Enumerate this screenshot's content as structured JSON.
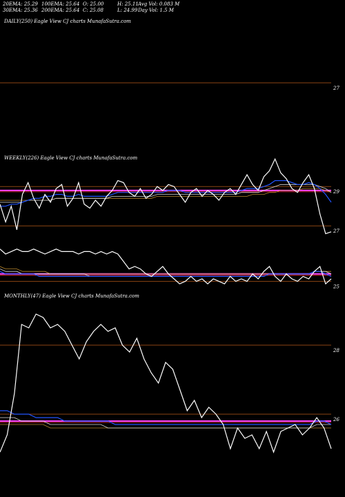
{
  "stats": {
    "ema20": "20EMA: 25.29",
    "ema100": "100EMA: 25.64",
    "open": "O: 25.00",
    "high": "H: 25.11",
    "avg_vol": "Avg Vol: 0.083 M",
    "ema30": "30EMA: 25.36",
    "ema200": "200EMA: 25.64",
    "close": "C: 25.08",
    "low": "L: 24.99",
    "day_vol": "Day Vol: 1.5  M"
  },
  "panels": {
    "daily": {
      "label": "DAILY(250) Eagle  View  CJ charts MunafaSutra.com"
    },
    "weekly": {
      "label": "WEEKLY(226) Eagle  View  CJ charts MunafaSutra.com"
    },
    "monthly": {
      "label": "MONTHLY(47) Eagle  View  CJ charts MunafaSutra.com"
    }
  },
  "colors": {
    "price": "#ffffff",
    "ema_fast": "#2255ff",
    "ema_mid": "#dddddd",
    "ema_slow": "#b8862b",
    "level_line": "#8b4513",
    "pink_level": "#ff44ff",
    "red_ema": "#ff3333"
  },
  "chart_data": [
    {
      "type": "line",
      "panel": "daily",
      "levels": [
        {
          "value": 27,
          "label": "27"
        }
      ],
      "series": []
    },
    {
      "type": "line",
      "panel": "weekly-upper",
      "ylim": [
        26.2,
        30.2
      ],
      "levels": [
        {
          "value": 29,
          "label": "29"
        },
        {
          "value": 27,
          "label": "27"
        }
      ],
      "pink_level": 28.8,
      "series": [
        {
          "role": "price",
          "values": [
            28.1,
            27.2,
            28.0,
            26.8,
            28.6,
            29.2,
            28.4,
            27.9,
            28.6,
            28.2,
            28.9,
            29.1,
            28.0,
            28.4,
            29.2,
            28.1,
            27.9,
            28.3,
            28.0,
            28.5,
            28.8,
            29.3,
            29.2,
            28.7,
            28.5,
            28.9,
            28.4,
            28.6,
            29.0,
            28.8,
            29.1,
            29.0,
            28.6,
            28.2,
            28.7,
            28.9,
            28.5,
            28.8,
            28.6,
            28.3,
            28.7,
            28.9,
            28.6,
            29.1,
            29.6,
            29.1,
            28.8,
            29.5,
            29.8,
            30.4,
            29.7,
            29.4,
            28.9,
            28.7,
            29.2,
            29.6,
            28.9,
            27.6,
            26.6,
            26.7
          ]
        },
        {
          "role": "ema_fast",
          "values": [
            28.0,
            28.0,
            28.1,
            28.1,
            28.2,
            28.3,
            28.4,
            28.4,
            28.5,
            28.5,
            28.6,
            28.6,
            28.5,
            28.5,
            28.6,
            28.5,
            28.5,
            28.5,
            28.5,
            28.5,
            28.6,
            28.7,
            28.7,
            28.7,
            28.7,
            28.7,
            28.7,
            28.7,
            28.7,
            28.7,
            28.8,
            28.8,
            28.8,
            28.7,
            28.7,
            28.7,
            28.7,
            28.7,
            28.7,
            28.7,
            28.7,
            28.7,
            28.7,
            28.8,
            28.9,
            28.9,
            28.9,
            29.0,
            29.1,
            29.3,
            29.3,
            29.3,
            29.2,
            29.1,
            29.1,
            29.2,
            29.1,
            28.9,
            28.6,
            28.2
          ]
        },
        {
          "role": "ema_mid",
          "values": [
            28.2,
            28.2,
            28.2,
            28.2,
            28.2,
            28.3,
            28.3,
            28.3,
            28.3,
            28.3,
            28.4,
            28.4,
            28.4,
            28.4,
            28.4,
            28.4,
            28.4,
            28.4,
            28.4,
            28.4,
            28.5,
            28.5,
            28.5,
            28.5,
            28.5,
            28.5,
            28.5,
            28.5,
            28.6,
            28.6,
            28.6,
            28.6,
            28.6,
            28.6,
            28.6,
            28.6,
            28.6,
            28.6,
            28.6,
            28.6,
            28.6,
            28.6,
            28.6,
            28.7,
            28.7,
            28.7,
            28.7,
            28.8,
            28.9,
            29.0,
            29.1,
            29.1,
            29.1,
            29.1,
            29.1,
            29.1,
            29.1,
            29.0,
            28.9,
            28.7
          ]
        },
        {
          "role": "ema_slow",
          "values": [
            28.3,
            28.3,
            28.3,
            28.3,
            28.3,
            28.3,
            28.3,
            28.3,
            28.3,
            28.3,
            28.4,
            28.4,
            28.4,
            28.4,
            28.4,
            28.4,
            28.4,
            28.4,
            28.4,
            28.4,
            28.4,
            28.4,
            28.4,
            28.4,
            28.4,
            28.4,
            28.4,
            28.4,
            28.5,
            28.5,
            28.5,
            28.5,
            28.5,
            28.5,
            28.5,
            28.5,
            28.5,
            28.5,
            28.5,
            28.5,
            28.5,
            28.5,
            28.5,
            28.5,
            28.5,
            28.6,
            28.6,
            28.6,
            28.7,
            28.7,
            28.8,
            28.8,
            28.8,
            28.8,
            28.9,
            28.9,
            28.9,
            28.9,
            28.8,
            28.7
          ]
        }
      ]
    },
    {
      "type": "line",
      "panel": "weekly-lower",
      "ylim": [
        24.6,
        26.6
      ],
      "levels": [
        {
          "value": 25,
          "label": "25"
        }
      ],
      "pink_level": 25.3,
      "series": [
        {
          "role": "price",
          "values": [
            26.3,
            26.1,
            26.2,
            26.3,
            26.2,
            26.2,
            26.3,
            26.2,
            26.1,
            26.2,
            26.3,
            26.2,
            26.2,
            26.2,
            26.1,
            26.2,
            26.2,
            26.1,
            26.2,
            26.1,
            26.2,
            26.1,
            25.8,
            25.5,
            25.6,
            25.5,
            25.3,
            25.2,
            25.4,
            25.6,
            25.3,
            25.1,
            24.9,
            25.0,
            25.2,
            25.0,
            25.1,
            24.9,
            25.1,
            25.0,
            24.9,
            25.2,
            25.0,
            25.1,
            25.0,
            25.3,
            25.1,
            25.4,
            25.6,
            25.2,
            25.0,
            25.3,
            25.1,
            25.0,
            25.2,
            25.1,
            25.4,
            25.6,
            24.9,
            25.1
          ]
        },
        {
          "role": "ema_fast",
          "values": [
            25.4,
            25.3,
            25.3,
            25.3,
            25.3,
            25.3,
            25.3,
            25.2,
            25.2,
            25.2,
            25.2,
            25.2,
            25.2,
            25.2,
            25.2,
            25.2,
            25.2,
            25.2,
            25.2,
            25.2,
            25.2,
            25.2,
            25.2,
            25.2,
            25.2,
            25.2,
            25.2,
            25.2,
            25.2,
            25.2,
            25.2,
            25.2,
            25.2,
            25.2,
            25.2,
            25.2,
            25.2,
            25.2,
            25.2,
            25.2,
            25.2,
            25.2,
            25.2,
            25.2,
            25.2,
            25.2,
            25.2,
            25.2,
            25.3,
            25.3,
            25.3,
            25.3,
            25.3,
            25.3,
            25.3,
            25.3,
            25.4,
            25.4,
            25.3,
            25.2
          ]
        },
        {
          "role": "ema_mid",
          "values": [
            25.5,
            25.4,
            25.4,
            25.4,
            25.3,
            25.3,
            25.3,
            25.3,
            25.3,
            25.3,
            25.3,
            25.3,
            25.3,
            25.3,
            25.3,
            25.3,
            25.2,
            25.2,
            25.2,
            25.2,
            25.2,
            25.2,
            25.2,
            25.2,
            25.2,
            25.2,
            25.2,
            25.2,
            25.2,
            25.2,
            25.2,
            25.2,
            25.2,
            25.2,
            25.2,
            25.2,
            25.2,
            25.2,
            25.2,
            25.2,
            25.2,
            25.2,
            25.2,
            25.2,
            25.2,
            25.2,
            25.2,
            25.2,
            25.3,
            25.3,
            25.3,
            25.3,
            25.3,
            25.3,
            25.3,
            25.3,
            25.4,
            25.4,
            25.4,
            25.3
          ]
        },
        {
          "role": "ema_slow",
          "values": [
            25.6,
            25.5,
            25.5,
            25.5,
            25.4,
            25.4,
            25.4,
            25.4,
            25.4,
            25.3,
            25.3,
            25.3,
            25.3,
            25.3,
            25.3,
            25.3,
            25.3,
            25.3,
            25.3,
            25.3,
            25.3,
            25.3,
            25.3,
            25.3,
            25.3,
            25.3,
            25.3,
            25.3,
            25.3,
            25.3,
            25.3,
            25.3,
            25.3,
            25.3,
            25.3,
            25.3,
            25.3,
            25.3,
            25.3,
            25.3,
            25.3,
            25.3,
            25.3,
            25.3,
            25.3,
            25.3,
            25.3,
            25.3,
            25.3,
            25.3,
            25.3,
            25.3,
            25.3,
            25.3,
            25.3,
            25.3,
            25.4,
            25.4,
            25.4,
            25.4
          ]
        }
      ]
    },
    {
      "type": "line",
      "panel": "monthly",
      "ylim": [
        25.2,
        29.2
      ],
      "levels": [
        {
          "value": 28,
          "label": "28"
        },
        {
          "value": 26,
          "label": "26"
        }
      ],
      "pink_level": 25.8,
      "series": [
        {
          "role": "price",
          "values": [
            24.9,
            25.4,
            26.6,
            28.6,
            28.5,
            28.9,
            28.8,
            28.5,
            28.6,
            28.4,
            28.0,
            27.6,
            28.1,
            28.4,
            28.6,
            28.4,
            28.5,
            28.0,
            27.8,
            28.2,
            27.6,
            27.2,
            26.9,
            27.5,
            27.3,
            26.7,
            26.1,
            26.4,
            25.9,
            26.2,
            26.0,
            25.7,
            25.0,
            25.6,
            25.3,
            25.4,
            25.0,
            25.5,
            24.9,
            25.5,
            25.6,
            25.7,
            25.4,
            25.6,
            25.9,
            25.6,
            25.0
          ]
        },
        {
          "role": "ema_fast",
          "values": [
            26.1,
            26.1,
            26.0,
            26.0,
            26.0,
            25.9,
            25.9,
            25.9,
            25.9,
            25.8,
            25.8,
            25.8,
            25.8,
            25.8,
            25.8,
            25.8,
            25.7,
            25.7,
            25.7,
            25.7,
            25.7,
            25.7,
            25.7,
            25.7,
            25.7,
            25.7,
            25.7,
            25.7,
            25.7,
            25.7,
            25.7,
            25.7,
            25.7,
            25.7,
            25.7,
            25.7,
            25.7,
            25.7,
            25.7,
            25.7,
            25.7,
            25.7,
            25.7,
            25.7,
            25.8,
            25.8,
            25.7
          ]
        },
        {
          "role": "ema_mid",
          "values": [
            25.9,
            25.9,
            25.9,
            25.8,
            25.8,
            25.8,
            25.8,
            25.7,
            25.7,
            25.7,
            25.7,
            25.7,
            25.7,
            25.7,
            25.7,
            25.6,
            25.6,
            25.6,
            25.6,
            25.6,
            25.6,
            25.6,
            25.6,
            25.6,
            25.6,
            25.6,
            25.6,
            25.6,
            25.6,
            25.6,
            25.6,
            25.6,
            25.6,
            25.6,
            25.6,
            25.6,
            25.6,
            25.6,
            25.6,
            25.6,
            25.6,
            25.6,
            25.6,
            25.6,
            25.7,
            25.7,
            25.7
          ]
        },
        {
          "role": "ema_slow",
          "values": [
            25.7,
            25.7,
            25.7,
            25.7,
            25.7,
            25.7,
            25.7,
            25.6,
            25.6,
            25.6,
            25.6,
            25.6,
            25.6,
            25.6,
            25.6,
            25.6,
            25.6,
            25.6,
            25.6,
            25.6,
            25.6,
            25.6,
            25.6,
            25.6,
            25.6,
            25.6,
            25.6,
            25.6,
            25.6,
            25.6,
            25.6,
            25.6,
            25.6,
            25.6,
            25.6,
            25.6,
            25.6,
            25.6,
            25.6,
            25.6,
            25.6,
            25.6,
            25.6,
            25.6,
            25.6,
            25.6,
            25.6
          ]
        }
      ]
    }
  ]
}
